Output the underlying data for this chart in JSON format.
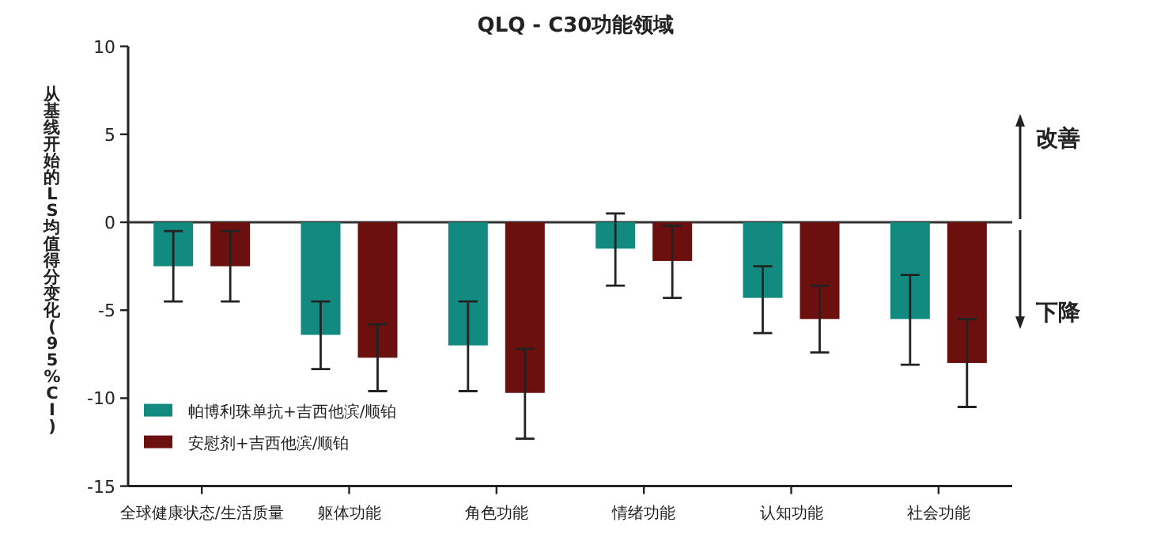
{
  "chart_data": {
    "type": "bar",
    "title": "QLQ - C30功能领域",
    "ylabel": "从基线开始的LS均值得分变化(95%CI)",
    "categories": [
      "全球健康状态/生活质量",
      "躯体功能",
      "角色功能",
      "情绪功能",
      "认知功能",
      "社会功能"
    ],
    "series": [
      {
        "name": "帕博利珠单抗+吉西他滨/顺铂",
        "color": "#138a80",
        "values": [
          -2.5,
          -6.4,
          -7.0,
          -1.5,
          -4.3,
          -5.5
        ],
        "errors": [
          [
            -4.5,
            -0.5
          ],
          [
            -8.35,
            -4.5
          ],
          [
            -9.6,
            -4.5
          ],
          [
            -3.6,
            0.5
          ],
          [
            -6.3,
            -2.5
          ],
          [
            -8.1,
            -3.0
          ]
        ]
      },
      {
        "name": "安慰剂+吉西他滨/顺铂",
        "color": "#6b0f0f",
        "values": [
          -2.5,
          -7.7,
          -9.7,
          -2.2,
          -5.5,
          -8.0
        ],
        "errors": [
          [
            -4.5,
            -0.5
          ],
          [
            -9.6,
            -5.8
          ],
          [
            -12.3,
            -7.2
          ],
          [
            -4.3,
            -0.2
          ],
          [
            -7.4,
            -3.6
          ],
          [
            -10.5,
            -5.5
          ]
        ]
      }
    ],
    "ylim": [
      -15,
      10
    ],
    "yticks": [
      -15,
      -10,
      -5,
      0,
      5,
      10
    ],
    "ref_lines": [
      {
        "axis": "y",
        "value": 0
      }
    ],
    "legend": "bottom left",
    "annotations": [
      "改善",
      "下降"
    ]
  }
}
